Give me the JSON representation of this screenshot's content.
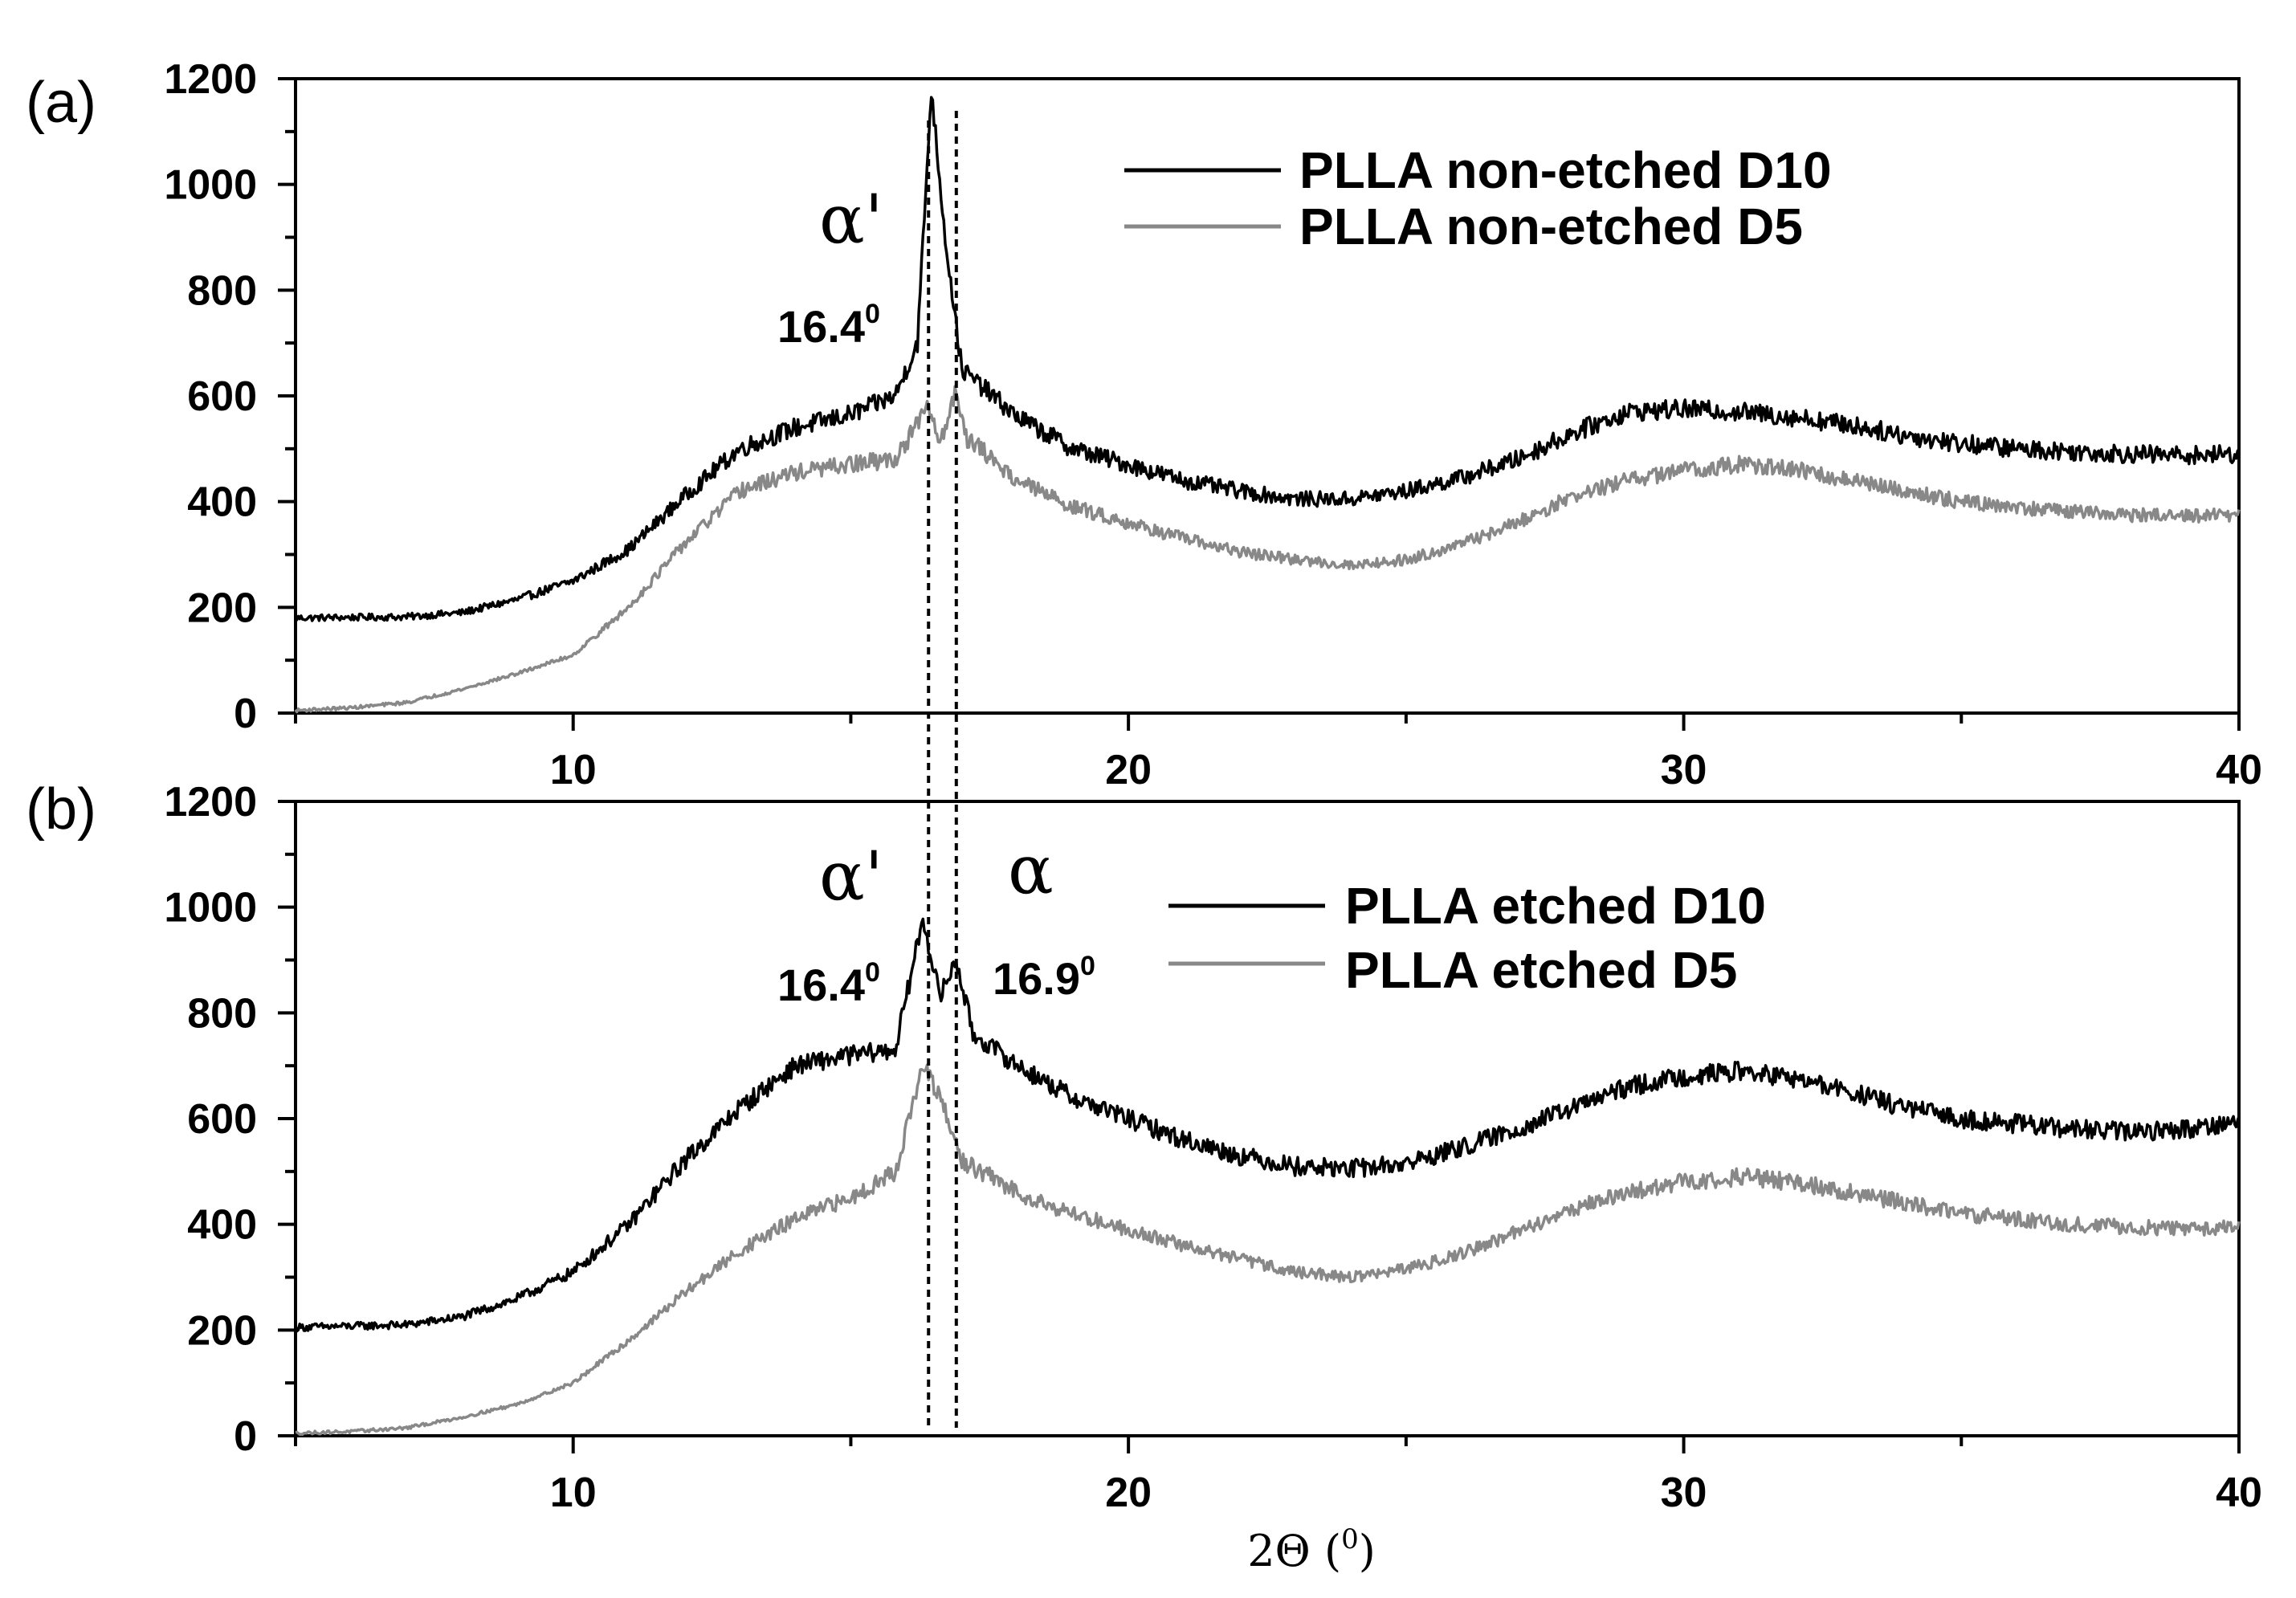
{
  "chart_data": [
    {
      "panel": "(a)",
      "type": "line",
      "xlim": [
        5,
        40
      ],
      "ylim": [
        0,
        1200
      ],
      "xticks": [
        10,
        20,
        30,
        40
      ],
      "yticks": [
        0,
        200,
        400,
        600,
        800,
        1000,
        1200
      ],
      "xlabel": "",
      "legend_position": "top-right",
      "series": [
        {
          "name": "PLLA non-etched D10",
          "color": "#000000",
          "points": [
            [
              5,
              180
            ],
            [
              7,
              182
            ],
            [
              8,
              190
            ],
            [
              9,
              215
            ],
            [
              10,
              250
            ],
            [
              11,
              310
            ],
            [
              12,
              410
            ],
            [
              13,
              500
            ],
            [
              14,
              540
            ],
            [
              15,
              565
            ],
            [
              15.8,
              600
            ],
            [
              16.2,
              700
            ],
            [
              16.45,
              1180
            ],
            [
              16.7,
              900
            ],
            [
              17,
              650
            ],
            [
              18,
              560
            ],
            [
              19,
              500
            ],
            [
              20,
              470
            ],
            [
              21,
              440
            ],
            [
              22,
              420
            ],
            [
              23,
              405
            ],
            [
              24,
              405
            ],
            [
              25,
              420
            ],
            [
              26,
              445
            ],
            [
              27,
              480
            ],
            [
              28,
              530
            ],
            [
              29,
              570
            ],
            [
              30,
              575
            ],
            [
              31,
              570
            ],
            [
              32,
              560
            ],
            [
              33,
              545
            ],
            [
              34,
              525
            ],
            [
              35,
              510
            ],
            [
              36,
              500
            ],
            [
              37,
              495
            ],
            [
              38,
              490
            ],
            [
              39,
              488
            ],
            [
              40,
              490
            ]
          ]
        },
        {
          "name": "PLLA non-etched D5",
          "color": "#888888",
          "points": [
            [
              5,
              5
            ],
            [
              6,
              10
            ],
            [
              7,
              20
            ],
            [
              8,
              45
            ],
            [
              9,
              75
            ],
            [
              10,
              110
            ],
            [
              11,
              200
            ],
            [
              12,
              320
            ],
            [
              13,
              420
            ],
            [
              14,
              455
            ],
            [
              15,
              470
            ],
            [
              15.8,
              480
            ],
            [
              16.4,
              580
            ],
            [
              16.6,
              510
            ],
            [
              16.9,
              610
            ],
            [
              17.1,
              520
            ],
            [
              18,
              440
            ],
            [
              19,
              390
            ],
            [
              20,
              360
            ],
            [
              21,
              330
            ],
            [
              22,
              305
            ],
            [
              23,
              290
            ],
            [
              24,
              280
            ],
            [
              25,
              290
            ],
            [
              26,
              320
            ],
            [
              27,
              360
            ],
            [
              28,
              410
            ],
            [
              29,
              440
            ],
            [
              30,
              460
            ],
            [
              31,
              470
            ],
            [
              32,
              460
            ],
            [
              33,
              440
            ],
            [
              34,
              420
            ],
            [
              35,
              400
            ],
            [
              36,
              390
            ],
            [
              37,
              380
            ],
            [
              38,
              375
            ],
            [
              39,
              372
            ],
            [
              40,
              375
            ]
          ]
        }
      ],
      "annotations": [
        {
          "symbol": "α'",
          "value": "16.4",
          "unit_sup": "0",
          "x": 16.4
        }
      ],
      "reference_lines_x": [
        16.4,
        16.9
      ]
    },
    {
      "panel": "(b)",
      "type": "line",
      "xlim": [
        5,
        40
      ],
      "ylim": [
        0,
        1200
      ],
      "xticks": [
        10,
        20,
        30,
        40
      ],
      "yticks": [
        0,
        200,
        400,
        600,
        800,
        1000,
        1200
      ],
      "xlabel": "2Θ (⁰)",
      "legend_position": "top-right",
      "series": [
        {
          "name": "PLLA etched D10",
          "color": "#000000",
          "points": [
            [
              5,
              205
            ],
            [
              7,
              210
            ],
            [
              8,
              225
            ],
            [
              9,
              260
            ],
            [
              10,
              310
            ],
            [
              11,
              400
            ],
            [
              12,
              520
            ],
            [
              13,
              620
            ],
            [
              14,
              700
            ],
            [
              15,
              720
            ],
            [
              15.8,
              730
            ],
            [
              16.3,
              980
            ],
            [
              16.6,
              830
            ],
            [
              16.9,
              900
            ],
            [
              17.2,
              760
            ],
            [
              18,
              700
            ],
            [
              19,
              640
            ],
            [
              20,
              600
            ],
            [
              21,
              560
            ],
            [
              22,
              530
            ],
            [
              23,
              510
            ],
            [
              24,
              505
            ],
            [
              25,
              515
            ],
            [
              26,
              545
            ],
            [
              27,
              580
            ],
            [
              28,
              620
            ],
            [
              29,
              660
            ],
            [
              30,
              680
            ],
            [
              31,
              690
            ],
            [
              32,
              675
            ],
            [
              33,
              650
            ],
            [
              34,
              620
            ],
            [
              35,
              600
            ],
            [
              36,
              590
            ],
            [
              37,
              580
            ],
            [
              38,
              575
            ],
            [
              39,
              580
            ],
            [
              40,
              595
            ]
          ]
        },
        {
          "name": "PLLA etched D5",
          "color": "#888888",
          "points": [
            [
              5,
              5
            ],
            [
              6,
              8
            ],
            [
              7,
              15
            ],
            [
              8,
              35
            ],
            [
              9,
              60
            ],
            [
              10,
              100
            ],
            [
              11,
              180
            ],
            [
              12,
              270
            ],
            [
              13,
              350
            ],
            [
              14,
              410
            ],
            [
              15,
              450
            ],
            [
              15.8,
              500
            ],
            [
              16.3,
              700
            ],
            [
              16.6,
              640
            ],
            [
              17,
              520
            ],
            [
              18,
              460
            ],
            [
              19,
              420
            ],
            [
              20,
              390
            ],
            [
              21,
              360
            ],
            [
              22,
              335
            ],
            [
              23,
              310
            ],
            [
              24,
              300
            ],
            [
              25,
              315
            ],
            [
              26,
              345
            ],
            [
              27,
              385
            ],
            [
              28,
              430
            ],
            [
              29,
              460
            ],
            [
              30,
              480
            ],
            [
              31,
              490
            ],
            [
              32,
              480
            ],
            [
              33,
              460
            ],
            [
              34,
              440
            ],
            [
              35,
              420
            ],
            [
              36,
              410
            ],
            [
              37,
              400
            ],
            [
              38,
              395
            ],
            [
              39,
              392
            ],
            [
              40,
              395
            ]
          ]
        }
      ],
      "annotations": [
        {
          "symbol": "α'",
          "value": "16.4",
          "unit_sup": "0",
          "x": 16.4
        },
        {
          "symbol": "α",
          "value": "16.9",
          "unit_sup": "0",
          "x": 16.9
        }
      ],
      "reference_lines_x": [
        16.4,
        16.9
      ]
    }
  ],
  "legend_a": {
    "d10": "PLLA non-etched D10",
    "d5": "PLLA non-etched D5"
  },
  "legend_b": {
    "d10": "PLLA etched D10",
    "d5": "PLLA etched D5"
  },
  "panel_labels": {
    "a": "(a)",
    "b": "(b)"
  },
  "peaks": {
    "alpha_prime_symbol": "α'",
    "alpha_symbol": "α",
    "alpha_prime_value": "16.4",
    "alpha_value": "16.9",
    "degree_sup": "0"
  },
  "x_axis_title": {
    "prefix": "2Θ (",
    "sup": "0",
    "suffix": ")"
  },
  "colors": {
    "d10": "#000000",
    "d5": "#888888"
  }
}
